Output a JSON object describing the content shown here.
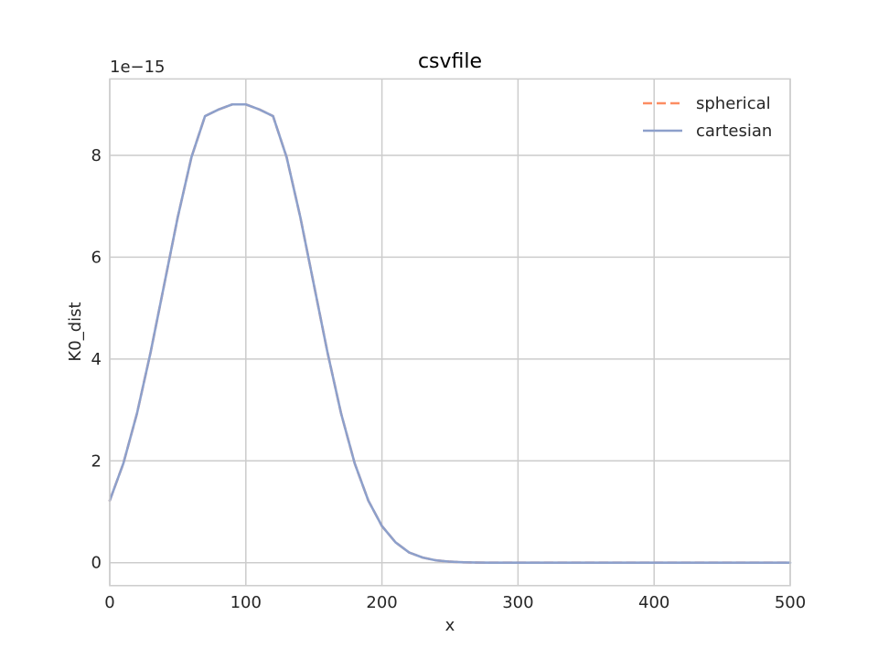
{
  "chart_data": {
    "type": "line",
    "title": "csvfile",
    "xlabel": "x",
    "ylabel": "K0_dist",
    "y_offset_label": "1e−15",
    "y_scale_factor": 1e-15,
    "xlim": [
      0,
      500
    ],
    "ylim": [
      -0.45,
      9.5
    ],
    "xticks": [
      0,
      100,
      200,
      300,
      400,
      500
    ],
    "xtick_labels": [
      "0",
      "100",
      "200",
      "300",
      "400",
      "500"
    ],
    "yticks": [
      0,
      2,
      4,
      6,
      8
    ],
    "ytick_labels": [
      "0",
      "2",
      "4",
      "6",
      "8"
    ],
    "grid": true,
    "legend_position": "top-right",
    "x": [
      0,
      10,
      20,
      30,
      40,
      50,
      60,
      70,
      80,
      90,
      100,
      110,
      120,
      130,
      140,
      150,
      160,
      170,
      180,
      190,
      200,
      210,
      220,
      230,
      240,
      250,
      260,
      270,
      280,
      290,
      300,
      320,
      340,
      360,
      380,
      400,
      420,
      440,
      460,
      480,
      500
    ],
    "series": [
      {
        "name": "spherical",
        "style": "dashed",
        "color": "#fc8d62",
        "values": [
          1.22,
          1.95,
          2.93,
          4.13,
          5.46,
          6.79,
          7.96,
          8.77,
          8.9,
          9.0,
          9.0,
          8.9,
          8.77,
          7.96,
          6.79,
          5.46,
          4.13,
          2.93,
          1.95,
          1.22,
          0.72,
          0.4,
          0.2,
          0.1,
          0.045,
          0.02,
          0.008,
          0.003,
          0.001,
          0.0004,
          0.0001,
          0.0,
          0.0,
          0.0,
          0.0,
          0.0,
          0.0,
          0.0,
          0.0,
          0.0,
          0.0
        ]
      },
      {
        "name": "cartesian",
        "style": "solid",
        "color": "#8da0cb",
        "values": [
          1.22,
          1.95,
          2.93,
          4.13,
          5.46,
          6.79,
          7.96,
          8.77,
          8.9,
          9.0,
          9.0,
          8.9,
          8.77,
          7.96,
          6.79,
          5.46,
          4.13,
          2.93,
          1.95,
          1.22,
          0.72,
          0.4,
          0.2,
          0.1,
          0.045,
          0.02,
          0.008,
          0.003,
          0.001,
          0.0004,
          0.0001,
          0.0,
          0.0,
          0.0,
          0.0,
          0.0,
          0.0,
          0.0,
          0.0,
          0.0,
          0.0
        ]
      }
    ]
  },
  "colors": {
    "grid": "#cccccc",
    "axes_edge": "#cccccc",
    "text": "#262626"
  }
}
